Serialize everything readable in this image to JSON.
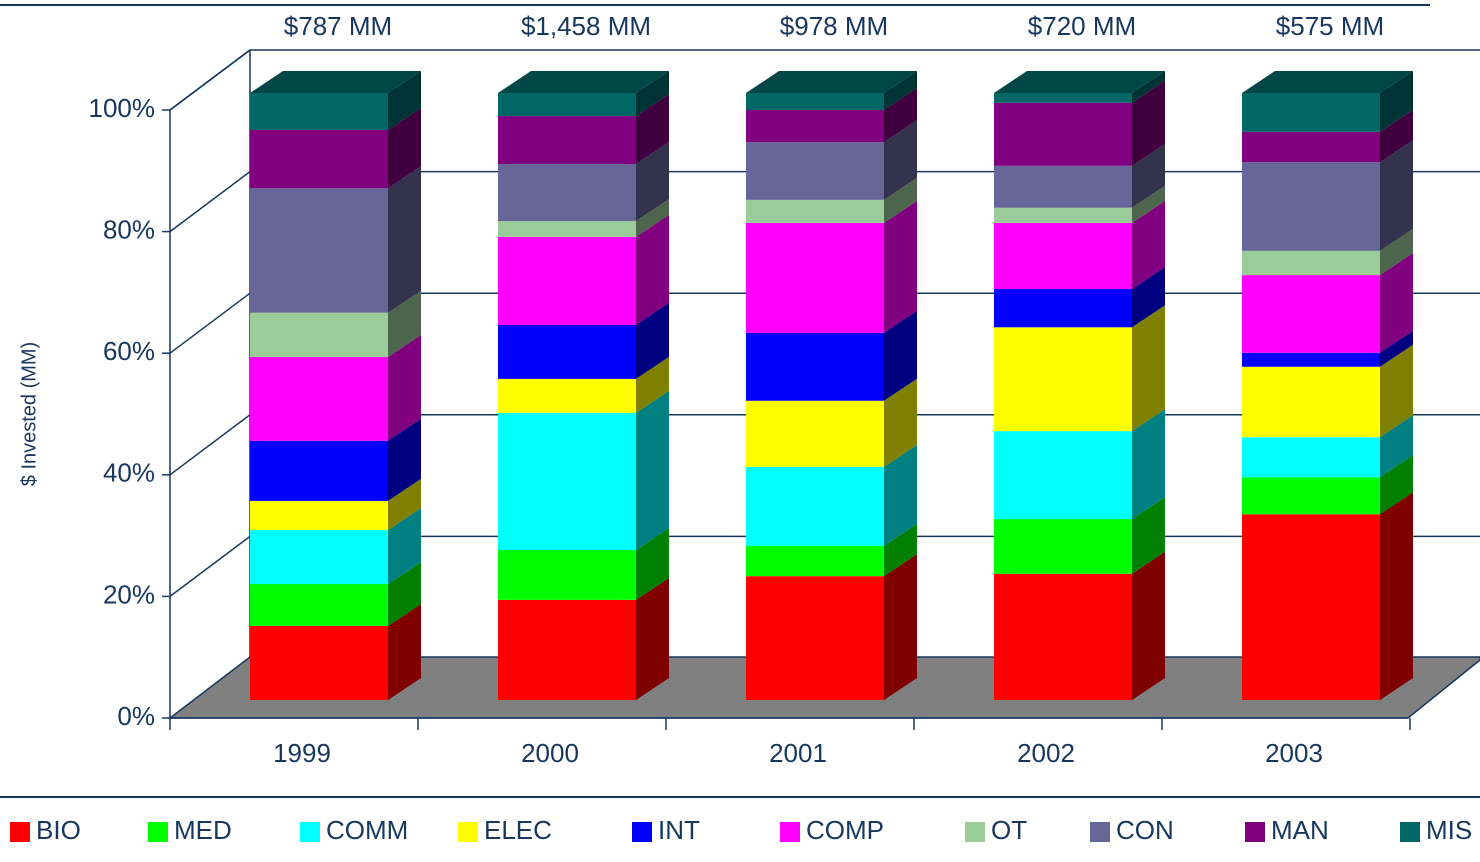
{
  "chart_data": {
    "type": "bar3d_stacked",
    "y_label": "$ Invested (MM)",
    "categories": [
      "1999",
      "2000",
      "2001",
      "2002",
      "2003"
    ],
    "annotations": [
      "$787 MM",
      "$1,458 MM",
      "$978 MM",
      "$720 MM",
      "$575 MM"
    ],
    "ylim": [
      0,
      100
    ],
    "yticks": [
      {
        "value": 0,
        "label": "0%"
      },
      {
        "value": 20,
        "label": "20%"
      },
      {
        "value": 40,
        "label": "40%"
      },
      {
        "value": 60,
        "label": "60%"
      },
      {
        "value": 80,
        "label": "80%"
      },
      {
        "value": 100,
        "label": "100%"
      }
    ],
    "grid": true,
    "series": [
      {
        "name": "BIO",
        "color": "#ff0000",
        "values": [
          12.2,
          16.5,
          20.4,
          20.8,
          30.6
        ]
      },
      {
        "name": "MED",
        "color": "#00ff00",
        "values": [
          6.9,
          8.2,
          5.0,
          9.0,
          6.1
        ]
      },
      {
        "name": "COMM",
        "color": "#00ffff",
        "values": [
          8.9,
          22.6,
          13.0,
          14.5,
          6.6
        ]
      },
      {
        "name": "ELEC",
        "color": "#ffff00",
        "values": [
          4.8,
          5.6,
          10.9,
          17.1,
          11.6
        ]
      },
      {
        "name": "INT",
        "color": "#0000ff",
        "values": [
          9.9,
          8.9,
          11.2,
          6.3,
          2.3
        ]
      },
      {
        "name": "COMP",
        "color": "#ff00ff",
        "values": [
          13.8,
          14.5,
          18.1,
          10.9,
          12.8
        ]
      },
      {
        "name": "OT",
        "color": "#99cc99",
        "values": [
          7.3,
          2.6,
          3.8,
          2.5,
          4.0
        ]
      },
      {
        "name": "CON",
        "color": "#666699",
        "values": [
          20.5,
          9.4,
          9.5,
          6.9,
          14.6
        ]
      },
      {
        "name": "MAN",
        "color": "#800080",
        "values": [
          9.6,
          7.9,
          5.3,
          10.4,
          5.0
        ]
      },
      {
        "name": "MIS",
        "color": "#006666",
        "values": [
          6.1,
          3.8,
          2.8,
          1.6,
          6.4
        ]
      }
    ]
  }
}
